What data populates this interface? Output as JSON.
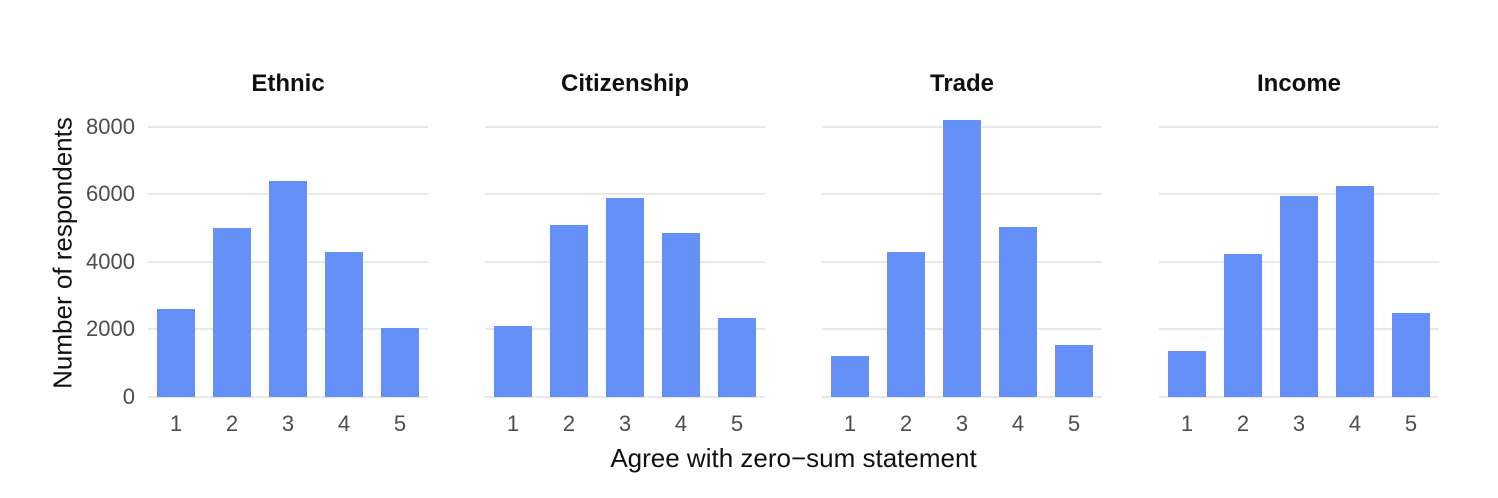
{
  "chart_data": {
    "type": "bar",
    "title": "",
    "xlabel": "Agree with zero−sum statement",
    "ylabel": "Number of respondents",
    "categories": [
      "1",
      "2",
      "3",
      "4",
      "5"
    ],
    "yticks": [
      0,
      2000,
      4000,
      6000,
      8000
    ],
    "ytick_labels": [
      "0",
      "2000",
      "4000",
      "6000",
      "8000"
    ],
    "ylim": [
      0,
      8530
    ],
    "grid": "horizontal-only",
    "legend": false,
    "facets": [
      {
        "title": "Ethnic",
        "values": [
          2600,
          5000,
          6400,
          4300,
          2050
        ]
      },
      {
        "title": "Citizenship",
        "values": [
          2100,
          5100,
          5900,
          4850,
          2350
        ]
      },
      {
        "title": "Trade",
        "values": [
          1200,
          4300,
          8200,
          5050,
          1550
        ]
      },
      {
        "title": "Income",
        "values": [
          1350,
          4250,
          5950,
          6250,
          2500
        ]
      }
    ],
    "colors": {
      "bar": "#6590F7",
      "gridline": "#e8e8e8",
      "tick_text": "#4d4d4d",
      "title_text": "#111111",
      "background": "#ffffff"
    }
  }
}
